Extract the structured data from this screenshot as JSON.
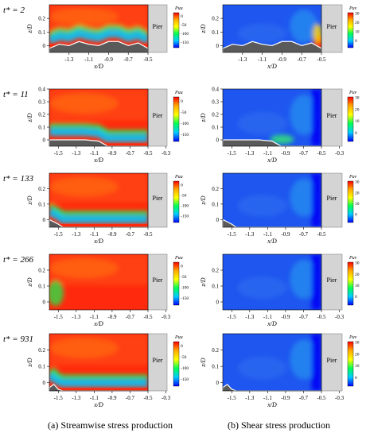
{
  "chart_data": [
    {
      "panel": "a",
      "type": "heatmap",
      "time_label": "t* = 2",
      "xlabel": "x/D",
      "ylabel": "z/D",
      "xticks": [
        "-1.3",
        "-1.1",
        "-0.9",
        "-0.7",
        "-0.5"
      ],
      "yticks": [
        "0",
        "0.1",
        "0.2"
      ],
      "xlim": [
        -1.5,
        -0.5
      ],
      "ylim": [
        -0.05,
        0.3
      ],
      "pier_label": "Pier",
      "colorbar": {
        "title": "Puu",
        "ticks": [
          "0",
          "-50",
          "-100",
          "-150"
        ],
        "range": [
          -150,
          0
        ]
      },
      "bed_profile": [
        [
          -1.5,
          -0.02
        ],
        [
          -1.4,
          0.01
        ],
        [
          -1.3,
          0.0
        ],
        [
          -1.2,
          0.03
        ],
        [
          -1.1,
          0.01
        ],
        [
          -1.0,
          0.0
        ],
        [
          -0.9,
          0.03
        ],
        [
          -0.8,
          0.03
        ],
        [
          -0.7,
          0.0
        ],
        [
          -0.6,
          0.02
        ],
        [
          -0.5,
          -0.02
        ]
      ]
    },
    {
      "panel": "b",
      "type": "heatmap",
      "time_label": "",
      "xlabel": "x/D",
      "ylabel": "z/D",
      "xticks": [
        "-1.3",
        "-1.1",
        "-0.9",
        "-0.7",
        "-0.5"
      ],
      "yticks": [
        "0",
        "0.1",
        "0.2"
      ],
      "xlim": [
        -1.5,
        -0.5
      ],
      "ylim": [
        -0.05,
        0.3
      ],
      "pier_label": "Pier",
      "colorbar": {
        "title": "Puv",
        "ticks": [
          "30",
          "20",
          "10",
          "0"
        ],
        "range": [
          0,
          30
        ]
      },
      "bed_profile": [
        [
          -1.5,
          -0.02
        ],
        [
          -1.4,
          0.01
        ],
        [
          -1.3,
          0.0
        ],
        [
          -1.2,
          0.03
        ],
        [
          -1.1,
          0.01
        ],
        [
          -1.0,
          0.0
        ],
        [
          -0.9,
          0.03
        ],
        [
          -0.8,
          0.03
        ],
        [
          -0.7,
          0.0
        ],
        [
          -0.6,
          0.02
        ],
        [
          -0.5,
          -0.02
        ]
      ]
    },
    {
      "panel": "a",
      "type": "heatmap",
      "time_label": "t* = 11",
      "xlabel": "x/D",
      "ylabel": "z/D",
      "xticks": [
        "-1.5",
        "-1.3",
        "-1.1",
        "-0.9",
        "-0.7",
        "-0.5",
        "-0.3"
      ],
      "yticks": [
        "0",
        "0.1",
        "0.2",
        "0.3",
        "0.4"
      ],
      "xlim": [
        -1.6,
        -0.5
      ],
      "ylim": [
        -0.05,
        0.4
      ],
      "pier_label": "Pier",
      "colorbar": {
        "title": "Puu",
        "ticks": [
          "0",
          "-50",
          "-100",
          "-150"
        ],
        "range": [
          -150,
          0
        ]
      },
      "bed_profile": [
        [
          -1.6,
          0.0
        ],
        [
          -1.4,
          0.0
        ],
        [
          -1.2,
          0.0
        ],
        [
          -1.05,
          -0.01
        ],
        [
          -0.95,
          -0.05
        ],
        [
          -0.5,
          -0.05
        ]
      ]
    },
    {
      "panel": "b",
      "type": "heatmap",
      "time_label": "",
      "xlabel": "x/D",
      "ylabel": "z/D",
      "xticks": [
        "-1.5",
        "-1.3",
        "-1.1",
        "-0.9",
        "-0.7",
        "-0.5",
        "-0.3"
      ],
      "yticks": [
        "0",
        "0.1",
        "0.2",
        "0.3",
        "0.4"
      ],
      "xlim": [
        -1.6,
        -0.5
      ],
      "ylim": [
        -0.05,
        0.4
      ],
      "pier_label": "Pier",
      "colorbar": {
        "title": "Puv",
        "ticks": [
          "30",
          "20",
          "10",
          "0"
        ],
        "range": [
          0,
          30
        ]
      },
      "bed_profile": [
        [
          -1.6,
          0.0
        ],
        [
          -1.4,
          0.0
        ],
        [
          -1.2,
          0.0
        ],
        [
          -1.05,
          -0.01
        ],
        [
          -0.95,
          -0.05
        ],
        [
          -0.5,
          -0.05
        ]
      ]
    },
    {
      "panel": "a",
      "type": "heatmap",
      "time_label": "t* = 133",
      "xlabel": "x/D",
      "ylabel": "z/D",
      "xticks": [
        "-1.5",
        "-1.3",
        "-1.1",
        "-0.9",
        "-0.7",
        "-0.5"
      ],
      "yticks": [
        "0",
        "0.1",
        "0.2"
      ],
      "xlim": [
        -1.6,
        -0.5
      ],
      "ylim": [
        -0.05,
        0.3
      ],
      "pier_label": "Pier",
      "colorbar": {
        "title": "Puu",
        "ticks": [
          "0",
          "-50",
          "-100",
          "-150"
        ],
        "range": [
          -150,
          0
        ]
      },
      "bed_profile": [
        [
          -1.6,
          0.0
        ],
        [
          -1.5,
          -0.03
        ],
        [
          -1.45,
          -0.05
        ],
        [
          -0.5,
          -0.05
        ]
      ]
    },
    {
      "panel": "b",
      "type": "heatmap",
      "time_label": "",
      "xlabel": "x/D",
      "ylabel": "z/D",
      "xticks": [
        "-1.5",
        "-1.3",
        "-1.1",
        "-0.9",
        "-0.7",
        "-0.5"
      ],
      "yticks": [
        "0",
        "0.1",
        "0.2"
      ],
      "xlim": [
        -1.6,
        -0.5
      ],
      "ylim": [
        -0.05,
        0.3
      ],
      "pier_label": "Pier",
      "colorbar": {
        "title": "Puv",
        "ticks": [
          "30",
          "20",
          "10",
          "0"
        ],
        "range": [
          0,
          30
        ]
      },
      "bed_profile": [
        [
          -1.6,
          0.0
        ],
        [
          -1.5,
          -0.03
        ],
        [
          -1.45,
          -0.05
        ],
        [
          -0.5,
          -0.05
        ]
      ]
    },
    {
      "panel": "a",
      "type": "heatmap",
      "time_label": "t* = 266",
      "xlabel": "x/D",
      "ylabel": "z/D",
      "xticks": [
        "-1.5",
        "-1.3",
        "-1.1",
        "-0.9",
        "-0.7",
        "-0.5",
        "-0.3"
      ],
      "yticks": [
        "0",
        "0.1",
        "0.2"
      ],
      "xlim": [
        -1.6,
        -0.5
      ],
      "ylim": [
        -0.05,
        0.3
      ],
      "pier_label": "Pier",
      "colorbar": {
        "title": "Puu",
        "ticks": [
          "0",
          "-50",
          "-100",
          "-150"
        ],
        "range": [
          -150,
          0
        ]
      },
      "bed_profile": []
    },
    {
      "panel": "b",
      "type": "heatmap",
      "time_label": "",
      "xlabel": "x/D",
      "ylabel": "z/D",
      "xticks": [
        "-1.5",
        "-1.3",
        "-1.1",
        "-0.9",
        "-0.7",
        "-0.5",
        "-0.3"
      ],
      "yticks": [
        "0",
        "0.1",
        "0.2"
      ],
      "xlim": [
        -1.6,
        -0.5
      ],
      "ylim": [
        -0.05,
        0.3
      ],
      "pier_label": "Pier",
      "colorbar": {
        "title": "Puv",
        "ticks": [
          "30",
          "20",
          "10",
          "0"
        ],
        "range": [
          0,
          30
        ]
      },
      "bed_profile": []
    },
    {
      "panel": "a",
      "type": "heatmap",
      "time_label": "t* = 931",
      "xlabel": "x/D",
      "ylabel": "z/D",
      "xticks": [
        "-1.5",
        "-1.3",
        "-1.1",
        "-0.9",
        "-0.7",
        "-0.5",
        "-0.3"
      ],
      "yticks": [
        "0",
        "0.1",
        "0.2"
      ],
      "xlim": [
        -1.6,
        -0.5
      ],
      "ylim": [
        -0.05,
        0.3
      ],
      "pier_label": "Pier",
      "colorbar": {
        "title": "Puu",
        "ticks": [
          "0",
          "-50",
          "-100",
          "-150"
        ],
        "range": [
          -150,
          0
        ]
      },
      "bed_profile": [
        [
          -1.6,
          -0.03
        ],
        [
          -1.55,
          -0.01
        ],
        [
          -1.5,
          -0.04
        ],
        [
          -1.45,
          -0.05
        ],
        [
          -0.5,
          -0.05
        ]
      ]
    },
    {
      "panel": "b",
      "type": "heatmap",
      "time_label": "",
      "xlabel": "x/D",
      "ylabel": "z/D",
      "xticks": [
        "-1.5",
        "-1.3",
        "-1.1",
        "-0.9",
        "-0.7",
        "-0.5",
        "-0.3"
      ],
      "yticks": [
        "0",
        "0.1",
        "0.2"
      ],
      "xlim": [
        -1.6,
        -0.5
      ],
      "ylim": [
        -0.05,
        0.3
      ],
      "pier_label": "Pier",
      "colorbar": {
        "title": "Puv",
        "ticks": [
          "30",
          "20",
          "10",
          "0"
        ],
        "range": [
          0,
          30
        ]
      },
      "bed_profile": [
        [
          -1.6,
          -0.03
        ],
        [
          -1.55,
          -0.01
        ],
        [
          -1.5,
          -0.04
        ],
        [
          -1.45,
          -0.05
        ],
        [
          -0.5,
          -0.05
        ]
      ]
    }
  ],
  "captions": {
    "left": "(a) Streamwise stress production",
    "right": "(b) Shear stress production"
  },
  "colors": {
    "puu_field": "#ff2a0d",
    "puv_field": "#1e56ef",
    "bed": "#5a5a5a",
    "pier": "#d4d4d4"
  }
}
